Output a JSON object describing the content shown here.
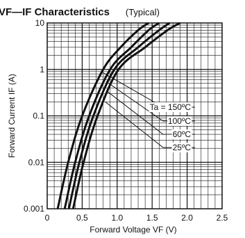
{
  "chart_data": {
    "type": "line",
    "title": "VF—IF  Characteristics",
    "subtitle": "(Typical)",
    "xlabel": "Forward Voltage  VF (V)",
    "ylabel": "Forward Current  IF (A)",
    "xlim": [
      0,
      2.5
    ],
    "ylim": [
      0.001,
      10
    ],
    "yscale": "log",
    "grid": true,
    "x_ticks": [
      "0",
      "0.5",
      "1.0",
      "1.5",
      "2.0",
      "2.5"
    ],
    "y_ticks": [
      "0.001",
      "0.01",
      "0.1",
      "1",
      "10"
    ],
    "annotation_prefix": "Ta = ",
    "series": [
      {
        "name": "150ºC",
        "points": [
          [
            0.15,
            0.001
          ],
          [
            0.3,
            0.01
          ],
          [
            0.5,
            0.1
          ],
          [
            0.8,
            1
          ],
          [
            1.05,
            3
          ],
          [
            1.3,
            7
          ],
          [
            1.45,
            10
          ]
        ]
      },
      {
        "name": "100ºC",
        "points": [
          [
            0.25,
            0.001
          ],
          [
            0.4,
            0.01
          ],
          [
            0.6,
            0.1
          ],
          [
            0.9,
            1
          ],
          [
            1.2,
            3
          ],
          [
            1.45,
            7
          ],
          [
            1.6,
            10
          ]
        ]
      },
      {
        "name": "60ºC",
        "points": [
          [
            0.31,
            0.001
          ],
          [
            0.46,
            0.01
          ],
          [
            0.66,
            0.1
          ],
          [
            0.96,
            1
          ],
          [
            1.3,
            3
          ],
          [
            1.6,
            7
          ],
          [
            1.75,
            10
          ]
        ]
      },
      {
        "name": "25ºC",
        "points": [
          [
            0.37,
            0.001
          ],
          [
            0.52,
            0.01
          ],
          [
            0.72,
            0.1
          ],
          [
            1.02,
            1
          ],
          [
            1.4,
            3
          ],
          [
            1.72,
            7
          ],
          [
            1.9,
            10
          ]
        ]
      }
    ]
  }
}
